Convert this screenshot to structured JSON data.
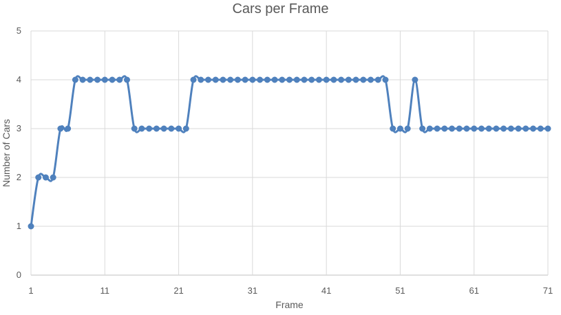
{
  "chart_data": {
    "type": "line",
    "title": "Cars per Frame",
    "xlabel": "Frame",
    "ylabel": "Number of Cars",
    "xlim": [
      1,
      71
    ],
    "ylim": [
      0,
      5
    ],
    "x_ticks": [
      1,
      11,
      21,
      31,
      41,
      51,
      61,
      71
    ],
    "y_ticks": [
      0,
      1,
      2,
      3,
      4,
      5
    ],
    "grid": true,
    "smooth": true,
    "series": [
      {
        "color": "#4f81bd",
        "x": [
          1,
          2,
          3,
          4,
          5,
          6,
          7,
          8,
          9,
          10,
          11,
          12,
          13,
          14,
          15,
          16,
          17,
          18,
          19,
          20,
          21,
          22,
          23,
          24,
          25,
          26,
          27,
          28,
          29,
          30,
          31,
          32,
          33,
          34,
          35,
          36,
          37,
          38,
          39,
          40,
          41,
          42,
          43,
          44,
          45,
          46,
          47,
          48,
          49,
          50,
          51,
          52,
          53,
          54,
          55,
          56,
          57,
          58,
          59,
          60,
          61,
          62,
          63,
          64,
          65,
          66,
          67,
          68,
          69,
          70,
          71
        ],
        "values": [
          1,
          2,
          2,
          2,
          3,
          3,
          4,
          4,
          4,
          4,
          4,
          4,
          4,
          4,
          3,
          3,
          3,
          3,
          3,
          3,
          3,
          3,
          4,
          4,
          4,
          4,
          4,
          4,
          4,
          4,
          4,
          4,
          4,
          4,
          4,
          4,
          4,
          4,
          4,
          4,
          4,
          4,
          4,
          4,
          4,
          4,
          4,
          4,
          4,
          3,
          3,
          3,
          4,
          3,
          3,
          3,
          3,
          3,
          3,
          3,
          3,
          3,
          3,
          3,
          3,
          3,
          3,
          3,
          3,
          3,
          3
        ]
      }
    ]
  }
}
